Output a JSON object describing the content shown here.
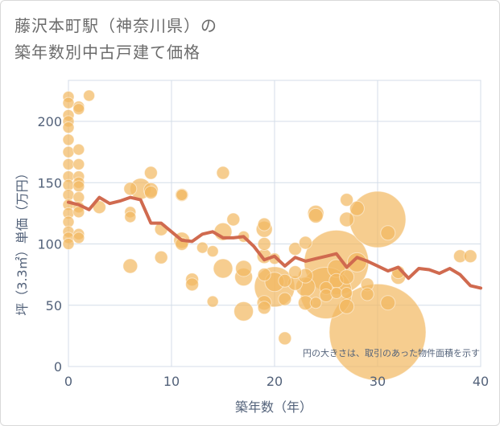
{
  "title_line1": "藤沢本町駅（神奈川県）の",
  "title_line2": "築年数別中古戸建て価格",
  "chart_data": {
    "type": "scatter",
    "title": "藤沢本町駅（神奈川県）の築年数別中古戸建て価格",
    "xlabel": "築年数（年）",
    "ylabel": "坪（3.3㎡）単価（万円）",
    "xlim": [
      0,
      40
    ],
    "ylim": [
      0,
      230
    ],
    "xticks": [
      0,
      10,
      20,
      30,
      40
    ],
    "yticks": [
      0,
      50,
      100,
      150,
      200
    ],
    "grid": true,
    "note": "円の大きさは、取引のあった物件面積を示す",
    "colors": {
      "bubble": "#f2b860",
      "line": "#d06a4f",
      "grid": "#d4dde8"
    },
    "scatter": [
      {
        "x": 0,
        "y": 220,
        "s": 7
      },
      {
        "x": 0,
        "y": 215,
        "s": 7
      },
      {
        "x": 0,
        "y": 205,
        "s": 7
      },
      {
        "x": 0,
        "y": 200,
        "s": 7
      },
      {
        "x": 0,
        "y": 195,
        "s": 7
      },
      {
        "x": 0,
        "y": 185,
        "s": 7
      },
      {
        "x": 0,
        "y": 175,
        "s": 7
      },
      {
        "x": 0,
        "y": 165,
        "s": 7
      },
      {
        "x": 0,
        "y": 155,
        "s": 7
      },
      {
        "x": 0,
        "y": 148,
        "s": 7
      },
      {
        "x": 0,
        "y": 140,
        "s": 7
      },
      {
        "x": 0,
        "y": 132,
        "s": 7
      },
      {
        "x": 0,
        "y": 125,
        "s": 7
      },
      {
        "x": 0,
        "y": 118,
        "s": 7
      },
      {
        "x": 0,
        "y": 110,
        "s": 7
      },
      {
        "x": 0,
        "y": 105,
        "s": 7
      },
      {
        "x": 0,
        "y": 100,
        "s": 7
      },
      {
        "x": 1,
        "y": 212,
        "s": 7
      },
      {
        "x": 1,
        "y": 210,
        "s": 7
      },
      {
        "x": 1,
        "y": 177,
        "s": 7
      },
      {
        "x": 1,
        "y": 165,
        "s": 7
      },
      {
        "x": 1,
        "y": 155,
        "s": 7
      },
      {
        "x": 1,
        "y": 150,
        "s": 7
      },
      {
        "x": 1,
        "y": 147,
        "s": 7
      },
      {
        "x": 1,
        "y": 138,
        "s": 7
      },
      {
        "x": 1,
        "y": 130,
        "s": 7
      },
      {
        "x": 1,
        "y": 126,
        "s": 7
      },
      {
        "x": 1,
        "y": 108,
        "s": 7
      },
      {
        "x": 1,
        "y": 105,
        "s": 7
      },
      {
        "x": 2,
        "y": 221,
        "s": 7
      },
      {
        "x": 3,
        "y": 130,
        "s": 8
      },
      {
        "x": 6,
        "y": 145,
        "s": 8
      },
      {
        "x": 6,
        "y": 126,
        "s": 7
      },
      {
        "x": 6,
        "y": 122,
        "s": 7
      },
      {
        "x": 6,
        "y": 82,
        "s": 9
      },
      {
        "x": 7,
        "y": 145,
        "s": 13
      },
      {
        "x": 8,
        "y": 158,
        "s": 8
      },
      {
        "x": 8,
        "y": 144,
        "s": 9
      },
      {
        "x": 8,
        "y": 142,
        "s": 8
      },
      {
        "x": 9,
        "y": 112,
        "s": 8
      },
      {
        "x": 9,
        "y": 89,
        "s": 8
      },
      {
        "x": 11,
        "y": 140,
        "s": 8
      },
      {
        "x": 11,
        "y": 140,
        "s": 7
      },
      {
        "x": 11,
        "y": 103,
        "s": 10
      },
      {
        "x": 11,
        "y": 100,
        "s": 8
      },
      {
        "x": 12,
        "y": 71,
        "s": 8
      },
      {
        "x": 12,
        "y": 67,
        "s": 8
      },
      {
        "x": 13,
        "y": 97,
        "s": 7
      },
      {
        "x": 14,
        "y": 53,
        "s": 7
      },
      {
        "x": 14,
        "y": 94,
        "s": 7
      },
      {
        "x": 15,
        "y": 158,
        "s": 8
      },
      {
        "x": 15,
        "y": 110,
        "s": 11
      },
      {
        "x": 15,
        "y": 80,
        "s": 12
      },
      {
        "x": 16,
        "y": 120,
        "s": 8
      },
      {
        "x": 17,
        "y": 106,
        "s": 7
      },
      {
        "x": 17,
        "y": 80,
        "s": 10
      },
      {
        "x": 17,
        "y": 73,
        "s": 11
      },
      {
        "x": 17,
        "y": 45,
        "s": 12
      },
      {
        "x": 19,
        "y": 116,
        "s": 8
      },
      {
        "x": 19,
        "y": 112,
        "s": 10
      },
      {
        "x": 19,
        "y": 100,
        "s": 8
      },
      {
        "x": 19,
        "y": 90,
        "s": 9
      },
      {
        "x": 19,
        "y": 75,
        "s": 8
      },
      {
        "x": 19,
        "y": 52,
        "s": 9
      },
      {
        "x": 19,
        "y": 48,
        "s": 8
      },
      {
        "x": 20,
        "y": 88,
        "s": 7
      },
      {
        "x": 20,
        "y": 65,
        "s": 25
      },
      {
        "x": 20,
        "y": 69,
        "s": 12
      },
      {
        "x": 21,
        "y": 70,
        "s": 8
      },
      {
        "x": 21,
        "y": 55,
        "s": 8
      },
      {
        "x": 21,
        "y": 23,
        "s": 8
      },
      {
        "x": 22,
        "y": 96,
        "s": 8
      },
      {
        "x": 22,
        "y": 77,
        "s": 8
      },
      {
        "x": 22,
        "y": 68,
        "s": 9
      },
      {
        "x": 23,
        "y": 101,
        "s": 8
      },
      {
        "x": 23,
        "y": 74,
        "s": 9
      },
      {
        "x": 23,
        "y": 65,
        "s": 12
      },
      {
        "x": 23,
        "y": 52,
        "s": 9
      },
      {
        "x": 24,
        "y": 125,
        "s": 10
      },
      {
        "x": 24,
        "y": 123,
        "s": 9
      },
      {
        "x": 24,
        "y": 52,
        "s": 7
      },
      {
        "x": 25,
        "y": 60,
        "s": 32
      },
      {
        "x": 25,
        "y": 64,
        "s": 8
      },
      {
        "x": 25,
        "y": 58,
        "s": 8
      },
      {
        "x": 26,
        "y": 85,
        "s": 40
      },
      {
        "x": 26,
        "y": 80,
        "s": 11
      },
      {
        "x": 26,
        "y": 70,
        "s": 9
      },
      {
        "x": 26,
        "y": 60,
        "s": 7
      },
      {
        "x": 27,
        "y": 136,
        "s": 8
      },
      {
        "x": 27,
        "y": 120,
        "s": 9
      },
      {
        "x": 27,
        "y": 73,
        "s": 9
      },
      {
        "x": 27,
        "y": 60,
        "s": 7
      },
      {
        "x": 27,
        "y": 49,
        "s": 9
      },
      {
        "x": 28,
        "y": 129,
        "s": 9
      },
      {
        "x": 28,
        "y": 85,
        "s": 12
      },
      {
        "x": 29,
        "y": 67,
        "s": 8
      },
      {
        "x": 29,
        "y": 59,
        "s": 8
      },
      {
        "x": 30,
        "y": 28,
        "s": 60
      },
      {
        "x": 30,
        "y": 120,
        "s": 35
      },
      {
        "x": 31,
        "y": 109,
        "s": 9
      },
      {
        "x": 31,
        "y": 52,
        "s": 9
      },
      {
        "x": 32,
        "y": 77,
        "s": 8
      },
      {
        "x": 32,
        "y": 73,
        "s": 9
      },
      {
        "x": 38,
        "y": 90,
        "s": 8
      },
      {
        "x": 39,
        "y": 90,
        "s": 8
      }
    ],
    "trend": {
      "x": [
        0,
        1,
        2,
        3,
        4,
        5,
        6,
        7,
        8,
        9,
        10,
        11,
        12,
        13,
        14,
        15,
        16,
        17,
        18,
        19,
        20,
        21,
        22,
        23,
        24,
        25,
        26,
        27,
        28,
        29,
        30,
        31,
        32,
        33,
        34,
        35,
        36,
        37,
        38,
        39,
        40
      ],
      "y": [
        134,
        132,
        128,
        138,
        133,
        135,
        138,
        136,
        117,
        117,
        110,
        103,
        102,
        108,
        110,
        105,
        105,
        106,
        98,
        87,
        90,
        82,
        89,
        86,
        88,
        90,
        92,
        81,
        89,
        86,
        82,
        78,
        81,
        72,
        80,
        79,
        76,
        80,
        75,
        66,
        64
      ]
    }
  }
}
